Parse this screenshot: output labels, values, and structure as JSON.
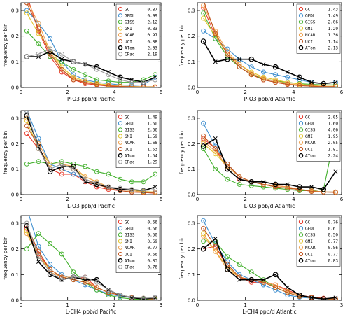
{
  "chart_data": [
    {
      "type": "line",
      "xlabel": "P-O3 ppb/d   Pacific",
      "ylabel": "frequency per bin",
      "xlim": [
        0,
        6
      ],
      "ylim": [
        0,
        0.33
      ],
      "xticks": [
        "0",
        "2",
        "4",
        "6"
      ],
      "yticks": [
        "0.0",
        "0.1",
        "0.2",
        "0.3"
      ],
      "legend_position": "top-right",
      "x": [
        0.25,
        0.75,
        1.25,
        1.75,
        2.25,
        2.75,
        3.25,
        3.75,
        4.25,
        4.75,
        5.25,
        5.75
      ],
      "series": [
        {
          "name": "GC",
          "score": "0.87",
          "color": "#e8392b",
          "values": [
            0.36,
            0.22,
            0.12,
            0.06,
            0.03,
            0.015,
            0.01,
            0.005,
            0.003,
            0.002,
            0.001,
            0.001
          ]
        },
        {
          "name": "GFDL",
          "score": "0.99",
          "color": "#3f8fcf",
          "values": [
            0.3,
            0.25,
            0.19,
            0.1,
            0.05,
            0.03,
            0.02,
            0.015,
            0.01,
            0.008,
            0.01,
            0.04
          ]
        },
        {
          "name": "GISS",
          "score": "2.12",
          "color": "#42b02c",
          "values": [
            0.22,
            0.17,
            0.12,
            0.1,
            0.07,
            0.05,
            0.03,
            0.025,
            0.02,
            0.02,
            0.03,
            0.05
          ]
        },
        {
          "name": "GMI",
          "score": "0.83",
          "color": "#e3c42c",
          "values": [
            0.29,
            0.21,
            0.15,
            0.08,
            0.04,
            0.025,
            0.015,
            0.01,
            0.005,
            0.004,
            0.003,
            0.003
          ]
        },
        {
          "name": "NCAR",
          "score": "0.97",
          "color": "#f0a04b",
          "values": [
            0.34,
            0.25,
            0.14,
            0.07,
            0.035,
            0.02,
            0.012,
            0.008,
            0.005,
            0.003,
            0.002,
            0.002
          ]
        },
        {
          "name": "UCI",
          "score": "0.88",
          "color": "#c2561f",
          "values": [
            0.33,
            0.23,
            0.13,
            0.07,
            0.03,
            0.02,
            0.012,
            0.006,
            0.004,
            0.003,
            0.002,
            0.002
          ]
        },
        {
          "name": "ATom",
          "score": "2.33",
          "color": "#000000",
          "values": [
            0.12,
            0.12,
            0.14,
            0.11,
            0.1,
            0.09,
            0.08,
            0.06,
            0.04,
            0.03,
            0.02,
            0.04
          ]
        },
        {
          "name": "CPac",
          "score": "2.19",
          "color": "#999999",
          "values": [
            0.12,
            0.13,
            0.15,
            0.13,
            0.1,
            0.09,
            0.07,
            0.05,
            0.03,
            0.02,
            0.02,
            0.03
          ]
        }
      ]
    },
    {
      "type": "line",
      "xlabel": "P-O3 ppb/d   Atlantic",
      "ylabel": "frequency per bin",
      "xlim": [
        0,
        6
      ],
      "ylim": [
        0,
        0.33
      ],
      "xticks": [
        "0",
        "2",
        "4",
        "6"
      ],
      "yticks": [
        "0.0",
        "0.1",
        "0.2",
        "0.3"
      ],
      "legend_position": "top-right",
      "x": [
        0.25,
        0.75,
        1.25,
        1.75,
        2.25,
        2.75,
        3.25,
        3.75,
        4.25,
        4.75,
        5.25,
        5.75
      ],
      "series": [
        {
          "name": "GC",
          "score": "1.43",
          "color": "#e8392b",
          "values": [
            0.31,
            0.2,
            0.13,
            0.08,
            0.05,
            0.03,
            0.02,
            0.012,
            0.008,
            0.005,
            0.003,
            0.003
          ]
        },
        {
          "name": "GFDL",
          "score": "1.49",
          "color": "#3f8fcf",
          "values": [
            0.22,
            0.19,
            0.15,
            0.11,
            0.08,
            0.06,
            0.05,
            0.04,
            0.03,
            0.02,
            0.015,
            0.02
          ]
        },
        {
          "name": "GISS",
          "score": "2.06",
          "color": "#42b02c",
          "values": [
            0.29,
            0.19,
            0.12,
            0.08,
            0.05,
            0.035,
            0.025,
            0.02,
            0.015,
            0.012,
            0.01,
            0.01
          ]
        },
        {
          "name": "GMI",
          "score": "1.29",
          "color": "#e3c42c",
          "values": [
            0.27,
            0.2,
            0.13,
            0.09,
            0.06,
            0.04,
            0.03,
            0.02,
            0.013,
            0.008,
            0.005,
            0.005
          ]
        },
        {
          "name": "NCAR",
          "score": "1.36",
          "color": "#f0a04b",
          "values": [
            0.32,
            0.22,
            0.14,
            0.09,
            0.055,
            0.035,
            0.025,
            0.015,
            0.01,
            0.006,
            0.004,
            0.004
          ]
        },
        {
          "name": "UCI",
          "score": "1.14",
          "color": "#c2561f",
          "values": [
            0.34,
            0.21,
            0.13,
            0.08,
            0.05,
            0.03,
            0.02,
            0.012,
            0.007,
            0.005,
            0.003,
            0.003
          ]
        },
        {
          "name": "ATom",
          "score": "2.13",
          "color": "#000000",
          "values": [
            0.18,
            0.1,
            0.11,
            0.11,
            0.11,
            0.09,
            0.08,
            0.06,
            0.04,
            0.02,
            0.015,
            0.02
          ]
        }
      ]
    },
    {
      "type": "line",
      "xlabel": "L-O3  ppb/d   Pacific",
      "ylabel": "frequency per bin",
      "xlim": [
        0,
        6
      ],
      "ylim": [
        0,
        0.33
      ],
      "xticks": [
        "0",
        "2",
        "4",
        "6"
      ],
      "yticks": [
        "0.0",
        "0.1",
        "0.2",
        "0.3"
      ],
      "legend_position": "top-right",
      "x": [
        0.25,
        0.75,
        1.25,
        1.75,
        2.25,
        2.75,
        3.25,
        3.75,
        4.25,
        4.75,
        5.25,
        5.75
      ],
      "series": [
        {
          "name": "GC",
          "score": "1.49",
          "color": "#e8392b",
          "values": [
            0.24,
            0.18,
            0.1,
            0.08,
            0.08,
            0.05,
            0.03,
            0.02,
            0.015,
            0.01,
            0.008,
            0.005
          ]
        },
        {
          "name": "GFDL",
          "score": "1.60",
          "color": "#3f8fcf",
          "values": [
            0.33,
            0.22,
            0.12,
            0.1,
            0.08,
            0.06,
            0.04,
            0.03,
            0.02,
            0.015,
            0.01,
            0.01
          ]
        },
        {
          "name": "GISS",
          "score": "2.66",
          "color": "#42b02c",
          "values": [
            0.12,
            0.13,
            0.12,
            0.13,
            0.12,
            0.11,
            0.09,
            0.08,
            0.06,
            0.05,
            0.05,
            0.08
          ]
        },
        {
          "name": "GMI",
          "score": "1.59",
          "color": "#e3c42c",
          "values": [
            0.29,
            0.18,
            0.12,
            0.12,
            0.1,
            0.07,
            0.05,
            0.03,
            0.02,
            0.015,
            0.012,
            0.01
          ]
        },
        {
          "name": "NCAR",
          "score": "1.68",
          "color": "#f0a04b",
          "values": [
            0.3,
            0.2,
            0.12,
            0.12,
            0.11,
            0.07,
            0.05,
            0.03,
            0.02,
            0.015,
            0.01,
            0.01
          ]
        },
        {
          "name": "UCI",
          "score": "1.53",
          "color": "#c2561f",
          "values": [
            0.27,
            0.19,
            0.1,
            0.1,
            0.1,
            0.06,
            0.04,
            0.025,
            0.015,
            0.01,
            0.008,
            0.006
          ]
        },
        {
          "name": "ATom",
          "score": "1.54",
          "color": "#000000",
          "values": [
            0.31,
            0.19,
            0.09,
            0.11,
            0.11,
            0.05,
            0.04,
            0.03,
            0.02,
            0.02,
            0.015,
            0.03
          ]
        },
        {
          "name": "CPac",
          "score": "1.29",
          "color": "#999999",
          "values": [
            0.33,
            0.18,
            0.1,
            0.12,
            0.1,
            0.06,
            0.045,
            0.03,
            0.025,
            0.02,
            0.015,
            0.02
          ]
        }
      ]
    },
    {
      "type": "line",
      "xlabel": "L-O3  ppb/d   Atlantic",
      "ylabel": "frequency per bin",
      "xlim": [
        0,
        6
      ],
      "ylim": [
        0,
        0.33
      ],
      "xticks": [
        "0",
        "2",
        "4",
        "6"
      ],
      "yticks": [
        "0.0",
        "0.1",
        "0.2",
        "0.3"
      ],
      "legend_position": "top-right",
      "x": [
        0.25,
        0.75,
        1.25,
        1.75,
        2.25,
        2.75,
        3.25,
        3.75,
        4.25,
        4.75,
        5.25,
        5.75
      ],
      "series": [
        {
          "name": "GC",
          "score": "2.05",
          "color": "#e8392b",
          "values": [
            0.22,
            0.18,
            0.1,
            0.06,
            0.05,
            0.04,
            0.035,
            0.03,
            0.02,
            0.015,
            0.01,
            0.01
          ]
        },
        {
          "name": "GFDL",
          "score": "1.60",
          "color": "#3f8fcf",
          "values": [
            0.28,
            0.19,
            0.12,
            0.07,
            0.05,
            0.04,
            0.03,
            0.025,
            0.02,
            0.015,
            0.01,
            0.01
          ]
        },
        {
          "name": "GISS",
          "score": "4.06",
          "color": "#42b02c",
          "values": [
            0.18,
            0.1,
            0.06,
            0.04,
            0.035,
            0.03,
            0.025,
            0.02,
            0.015,
            0.015,
            0.02,
            0.25
          ]
        },
        {
          "name": "GMI",
          "score": "1.95",
          "color": "#e3c42c",
          "values": [
            0.2,
            0.16,
            0.11,
            0.07,
            0.05,
            0.04,
            0.03,
            0.025,
            0.02,
            0.015,
            0.01,
            0.01
          ]
        },
        {
          "name": "NCAR",
          "score": "2.05",
          "color": "#f0a04b",
          "values": [
            0.21,
            0.17,
            0.11,
            0.07,
            0.05,
            0.04,
            0.035,
            0.03,
            0.02,
            0.015,
            0.01,
            0.01
          ]
        },
        {
          "name": "UCI",
          "score": "1.81",
          "color": "#c2561f",
          "values": [
            0.23,
            0.18,
            0.12,
            0.07,
            0.05,
            0.04,
            0.03,
            0.025,
            0.02,
            0.012,
            0.01,
            0.008
          ]
        },
        {
          "name": "ATom",
          "score": "2.24",
          "color": "#000000",
          "values": [
            0.19,
            0.22,
            0.1,
            0.06,
            0.05,
            0.05,
            0.04,
            0.04,
            0.03,
            0.03,
            0.02,
            0.09
          ]
        }
      ]
    },
    {
      "type": "line",
      "xlabel": "L-CH4 ppb/d   Pacific",
      "ylabel": "frequency per bin",
      "xlim": [
        0,
        3
      ],
      "ylim": [
        0,
        0.33
      ],
      "xticks": [
        "0",
        "1",
        "2",
        "3"
      ],
      "yticks": [
        "0.0",
        "0.1",
        "0.2",
        "0.3"
      ],
      "legend_position": "top-right",
      "x": [
        0.125,
        0.375,
        0.625,
        0.875,
        1.125,
        1.375,
        1.625,
        1.875,
        2.125,
        2.375,
        2.625,
        2.875
      ],
      "series": [
        {
          "name": "GC",
          "score": "0.66",
          "color": "#e8392b",
          "values": [
            0.28,
            0.18,
            0.12,
            0.09,
            0.08,
            0.09,
            0.05,
            0.03,
            0.02,
            0.01,
            0.005,
            0.004
          ]
        },
        {
          "name": "GFDL",
          "score": "0.56",
          "color": "#3f8fcf",
          "values": [
            0.36,
            0.21,
            0.14,
            0.1,
            0.08,
            0.06,
            0.04,
            0.025,
            0.015,
            0.01,
            0.008,
            0.005
          ]
        },
        {
          "name": "GISS",
          "score": "0.50",
          "color": "#42b02c",
          "values": [
            0.2,
            0.26,
            0.22,
            0.18,
            0.11,
            0.07,
            0.04,
            0.02,
            0.01,
            0.005,
            0.003,
            0.002
          ]
        },
        {
          "name": "GMI",
          "score": "0.69",
          "color": "#e3c42c",
          "values": [
            0.27,
            0.17,
            0.12,
            0.09,
            0.08,
            0.07,
            0.05,
            0.03,
            0.02,
            0.01,
            0.008,
            0.006
          ]
        },
        {
          "name": "NCAR",
          "score": "0.77",
          "color": "#f0a04b",
          "values": [
            0.26,
            0.17,
            0.11,
            0.09,
            0.09,
            0.08,
            0.05,
            0.03,
            0.02,
            0.012,
            0.008,
            0.006
          ]
        },
        {
          "name": "UCI",
          "score": "0.66",
          "color": "#c2561f",
          "values": [
            0.29,
            0.19,
            0.12,
            0.09,
            0.08,
            0.07,
            0.05,
            0.03,
            0.02,
            0.01,
            0.006,
            0.005
          ]
        },
        {
          "name": "ATom",
          "score": "0.83",
          "color": "#000000",
          "values": [
            0.29,
            0.15,
            0.1,
            0.08,
            0.09,
            0.08,
            0.08,
            0.04,
            0.02,
            0.01,
            0.005,
            0.01
          ]
        },
        {
          "name": "CPac",
          "score": "0.76",
          "color": "#999999",
          "values": [
            0.3,
            0.17,
            0.11,
            0.08,
            0.09,
            0.09,
            0.07,
            0.04,
            0.02,
            0.012,
            0.008,
            0.01
          ]
        }
      ]
    },
    {
      "type": "line",
      "xlabel": "L-CH4 ppb/d   Atlantic",
      "ylabel": "frequency per bin",
      "xlim": [
        0,
        3
      ],
      "ylim": [
        0,
        0.33
      ],
      "xticks": [
        "0",
        "1",
        "2",
        "3"
      ],
      "yticks": [
        "0.0",
        "0.1",
        "0.2",
        "0.3"
      ],
      "legend_position": "top-right",
      "x": [
        0.125,
        0.375,
        0.625,
        0.875,
        1.125,
        1.375,
        1.625,
        1.875,
        2.125,
        2.375,
        2.625,
        2.875
      ],
      "series": [
        {
          "name": "GC",
          "score": "0.76",
          "color": "#e8392b",
          "values": [
            0.2,
            0.21,
            0.13,
            0.09,
            0.07,
            0.07,
            0.06,
            0.04,
            0.02,
            0.012,
            0.008,
            0.005
          ]
        },
        {
          "name": "GFDL",
          "score": "0.61",
          "color": "#3f8fcf",
          "values": [
            0.31,
            0.22,
            0.15,
            0.1,
            0.08,
            0.06,
            0.04,
            0.02,
            0.012,
            0.008,
            0.005,
            0.004
          ]
        },
        {
          "name": "GISS",
          "score": "0.50",
          "color": "#42b02c",
          "values": [
            0.23,
            0.23,
            0.17,
            0.14,
            0.11,
            0.08,
            0.05,
            0.03,
            0.015,
            0.01,
            0.006,
            0.004
          ]
        },
        {
          "name": "GMI",
          "score": "0.77",
          "color": "#e3c42c",
          "values": [
            0.26,
            0.19,
            0.13,
            0.09,
            0.08,
            0.07,
            0.05,
            0.03,
            0.015,
            0.01,
            0.006,
            0.004
          ]
        },
        {
          "name": "NCAR",
          "score": "0.86",
          "color": "#f0a04b",
          "values": [
            0.25,
            0.19,
            0.12,
            0.09,
            0.08,
            0.07,
            0.06,
            0.035,
            0.02,
            0.01,
            0.006,
            0.004
          ]
        },
        {
          "name": "UCI",
          "score": "0.77",
          "color": "#c2561f",
          "values": [
            0.28,
            0.21,
            0.14,
            0.09,
            0.08,
            0.07,
            0.05,
            0.03,
            0.015,
            0.01,
            0.006,
            0.004
          ]
        },
        {
          "name": "ATom",
          "score": "0.83",
          "color": "#000000",
          "values": [
            0.2,
            0.24,
            0.12,
            0.08,
            0.08,
            0.08,
            0.1,
            0.05,
            0.02,
            0.01,
            0.005,
            0.01
          ]
        }
      ]
    }
  ]
}
